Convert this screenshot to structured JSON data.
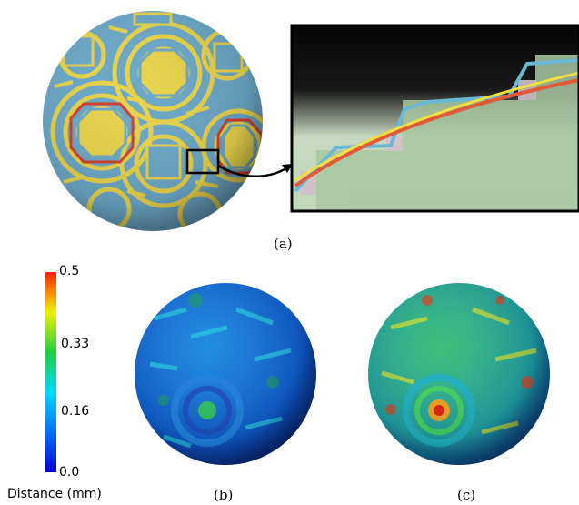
{
  "figure": {
    "panel_labels": {
      "a": "(a)",
      "b": "(b)",
      "c": "(c)"
    },
    "colorbar": {
      "ticks": [
        "0.5",
        "0.33",
        "0.16",
        "0.0"
      ],
      "unit_label": "Distance (mm)",
      "range": [
        0.0,
        0.5
      ],
      "colors": [
        "#0000d0",
        "#0070ff",
        "#00d8ff",
        "#20d040",
        "#f0f000",
        "#ff2000"
      ]
    },
    "surface_colors": {
      "blue": "#6ba7c7",
      "yellow": "#e7d24a",
      "red": "#d0402a"
    },
    "zoom_lines": {
      "yellow": "#f2e040",
      "red": "#e05a3a",
      "blue": "#6ab8d8"
    }
  }
}
